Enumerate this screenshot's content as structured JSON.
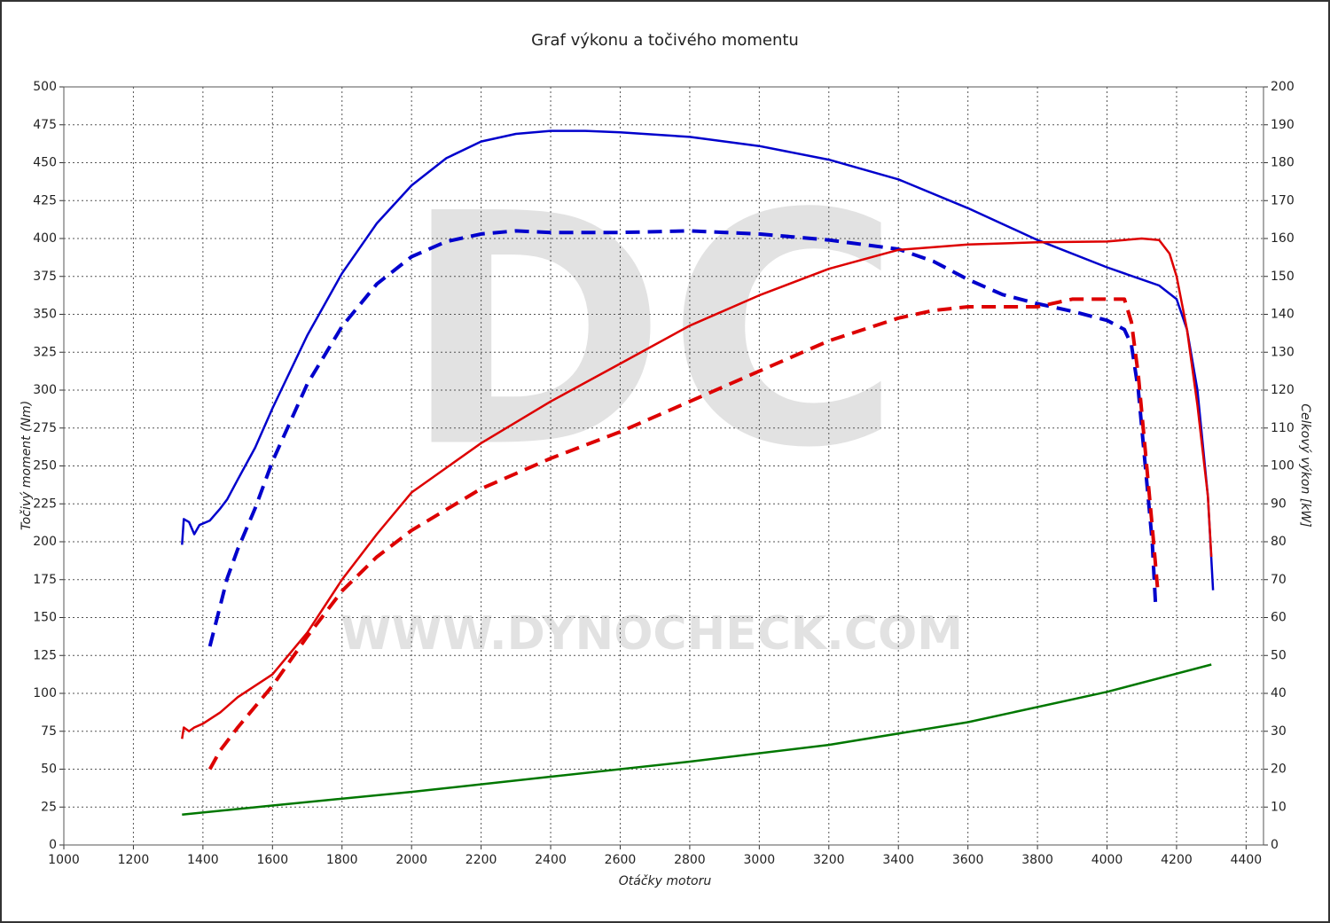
{
  "chart_data": {
    "type": "line",
    "title": "Graf výkonu a točivého momentu",
    "x_label": "Otáčky motoru",
    "y_label": "Točivý moment (Nm)",
    "y2_label": "Celkový výkon [kW]",
    "watermark": "DC",
    "watermark_url": "WWW.DYNOCHECK.COM",
    "xlim": [
      1000,
      4450
    ],
    "ylim": [
      0,
      500
    ],
    "y2lim": [
      0,
      200
    ],
    "xticks": [
      1000,
      1200,
      1400,
      1600,
      1800,
      2000,
      2200,
      2400,
      2600,
      2800,
      3000,
      3200,
      3400,
      3600,
      3800,
      4000,
      4200,
      4400
    ],
    "yticks": [
      0,
      25,
      50,
      75,
      100,
      125,
      150,
      175,
      200,
      225,
      250,
      275,
      300,
      325,
      350,
      375,
      400,
      425,
      450,
      475,
      500
    ],
    "y2ticks": [
      0,
      10,
      20,
      30,
      40,
      50,
      60,
      70,
      80,
      90,
      100,
      110,
      120,
      130,
      140,
      150,
      160,
      170,
      180,
      190,
      200
    ],
    "grid": true,
    "series": [
      {
        "color": "#0000cc",
        "dashed": false,
        "axis": "y",
        "x": [
          1340,
          1345,
          1360,
          1375,
          1390,
          1420,
          1450,
          1470,
          1500,
          1550,
          1600,
          1700,
          1800,
          1900,
          2000,
          2100,
          2200,
          2300,
          2400,
          2500,
          2600,
          2800,
          3000,
          3200,
          3400,
          3600,
          3800,
          4000,
          4100,
          4150,
          4200,
          4230,
          4260,
          4290,
          4305
        ],
        "values": [
          198,
          215,
          213,
          205,
          211,
          214,
          222,
          228,
          241,
          262,
          288,
          336,
          377,
          410,
          435,
          453,
          464,
          469,
          471,
          471,
          470,
          467,
          461,
          452,
          439,
          420,
          399,
          381,
          373,
          369,
          360,
          340,
          300,
          230,
          168
        ]
      },
      {
        "color": "#0000cc",
        "dashed": true,
        "axis": "y",
        "x": [
          1420,
          1450,
          1470,
          1500,
          1550,
          1600,
          1700,
          1800,
          1900,
          2000,
          2100,
          2200,
          2300,
          2400,
          2600,
          2800,
          3000,
          3200,
          3400,
          3500,
          3600,
          3700,
          3800,
          3900,
          4000,
          4050,
          4070,
          4090,
          4110,
          4130,
          4140
        ],
        "values": [
          131,
          158,
          176,
          195,
          222,
          253,
          304,
          342,
          370,
          388,
          398,
          403,
          405,
          404,
          404,
          405,
          403,
          399,
          393,
          385,
          373,
          363,
          357,
          352,
          346,
          340,
          330,
          300,
          250,
          200,
          157
        ]
      },
      {
        "color": "#dd0000",
        "dashed": false,
        "axis": "y2",
        "x": [
          1340,
          1345,
          1360,
          1375,
          1400,
          1450,
          1500,
          1600,
          1700,
          1800,
          1900,
          2000,
          2200,
          2400,
          2600,
          2800,
          3000,
          3200,
          3400,
          3600,
          3800,
          4000,
          4100,
          4150,
          4180,
          4200,
          4230,
          4260,
          4290,
          4300
        ],
        "values": [
          28,
          31,
          30,
          31,
          32,
          35,
          39,
          45,
          56,
          70,
          82,
          93,
          106,
          117,
          127,
          137,
          145,
          152,
          157,
          158.4,
          159,
          159.2,
          160,
          159.6,
          156,
          150,
          136,
          116,
          92,
          76
        ]
      },
      {
        "color": "#dd0000",
        "dashed": true,
        "axis": "y2",
        "x": [
          1420,
          1450,
          1500,
          1600,
          1700,
          1800,
          1900,
          2000,
          2200,
          2400,
          2600,
          2800,
          3000,
          3200,
          3400,
          3500,
          3600,
          3800,
          3900,
          4000,
          4050,
          4070,
          4090,
          4110,
          4130,
          4145
        ],
        "values": [
          20,
          25,
          31,
          42,
          55,
          67,
          76,
          83,
          94,
          102,
          109,
          117,
          125,
          133,
          139,
          141,
          142,
          142,
          144,
          144,
          144,
          138,
          124,
          104,
          84,
          68
        ]
      },
      {
        "color": "#007700",
        "dashed": false,
        "axis": "y",
        "x": [
          1340,
          1600,
          2000,
          2400,
          2800,
          3200,
          3600,
          4000,
          4300
        ],
        "values": [
          20,
          26,
          35,
          45,
          55,
          66,
          81,
          101,
          119
        ]
      }
    ]
  }
}
